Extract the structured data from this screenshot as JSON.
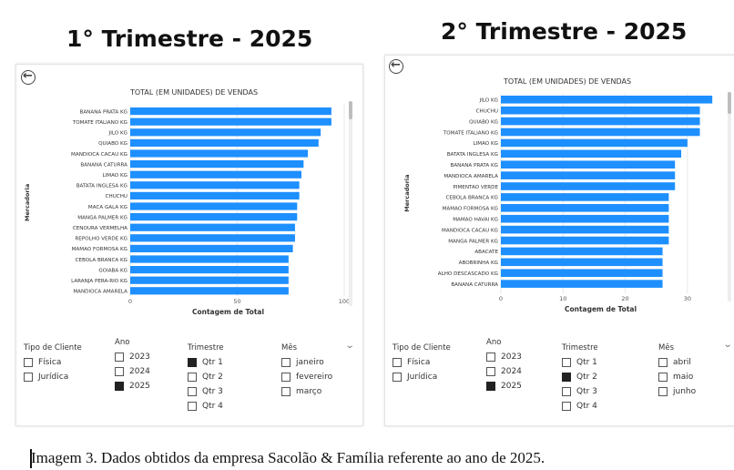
{
  "headings": {
    "left": "1° Trimestre - 2025",
    "right": "2° Trimestre - 2025"
  },
  "caption": "Imagem 3. Dados obtidos da empresa Sacolão & Família referente ao ano de 2025.",
  "colors": {
    "bar": "#1e8fff",
    "grid": "#e8e8e8"
  },
  "icons": {
    "back": "back-arrow-icon",
    "expand": "chevron-down-icon"
  },
  "chart_data": [
    {
      "type": "bar",
      "orientation": "horizontal",
      "title": "TOTAL (EM UNIDADES) DE VENDAS",
      "xlabel": "Contagem de Total",
      "ylabel": "Mercadoria",
      "xlim": [
        0,
        100
      ],
      "xticks": [
        0,
        50,
        100
      ],
      "categories": [
        "BANANA PRATA KG",
        "TOMATE ITALIANO KG",
        "JILO KG",
        "QUIABO KG",
        "MANDIOCA CACAU KG",
        "BANANA CATURRA",
        "LIMAO KG",
        "BATATA INGLESA KG",
        "CHUCHU",
        "MACA GALA KG",
        "MANGA PALMER KG",
        "CENOURA VERMELHA",
        "REPOLHO VERDE KG",
        "MAMAO FORMOSA KG",
        "CEBOLA BRANCA KG",
        "GOIABA KG",
        "LARANJA PERA-RIO KG",
        "MANDIOCA AMARELA"
      ],
      "values": [
        94,
        94,
        89,
        88,
        83,
        81,
        80,
        79,
        79,
        78,
        78,
        77,
        77,
        76,
        74,
        74,
        74,
        74
      ]
    },
    {
      "type": "bar",
      "orientation": "horizontal",
      "title": "TOTAL (EM UNIDADES) DE VENDAS",
      "xlabel": "Contagem de Total",
      "ylabel": "Mercadoria",
      "xlim": [
        0,
        35
      ],
      "xticks": [
        0,
        10,
        20,
        30
      ],
      "categories": [
        "JILO KG",
        "CHUCHU",
        "QUIABO KG",
        "TOMATE ITALIANO KG",
        "LIMAO KG",
        "BATATA INGLESA KG",
        "BANANA PRATA KG",
        "MANDIOCA AMARELA",
        "PIMENTAO VERDE",
        "CEBOLA BRANCA KG",
        "MAMAO FORMOSA KG",
        "MAMAO HAVAI KG",
        "MANDIOCA CACAU KG",
        "MANGA PALMER KG",
        "ABACATE",
        "ABOBRINHA KG",
        "ALHO DESCASCADO KG",
        "BANANA CATURRA"
      ],
      "values": [
        34,
        32,
        32,
        32,
        30,
        29,
        28,
        28,
        28,
        27,
        27,
        27,
        27,
        27,
        26,
        26,
        26,
        26
      ]
    }
  ],
  "filters": [
    {
      "cliente": {
        "title": "Tipo de Cliente",
        "options": [
          {
            "label": "Física",
            "checked": false
          },
          {
            "label": "Jurídica",
            "checked": false
          }
        ]
      },
      "ano": {
        "title": "Ano",
        "options": [
          {
            "label": "2023",
            "checked": false
          },
          {
            "label": "2024",
            "checked": false
          },
          {
            "label": "2025",
            "checked": true
          }
        ]
      },
      "trimestre": {
        "title": "Trimestre",
        "options": [
          {
            "label": "Qtr 1",
            "checked": true
          },
          {
            "label": "Qtr 2",
            "checked": false
          },
          {
            "label": "Qtr 3",
            "checked": false
          },
          {
            "label": "Qtr 4",
            "checked": false
          }
        ]
      },
      "mes": {
        "title": "Mês",
        "options": [
          {
            "label": "janeiro",
            "checked": false
          },
          {
            "label": "fevereiro",
            "checked": false
          },
          {
            "label": "março",
            "checked": false
          }
        ]
      }
    },
    {
      "cliente": {
        "title": "Tipo de Cliente",
        "options": [
          {
            "label": "Física",
            "checked": false
          },
          {
            "label": "Jurídica",
            "checked": false
          }
        ]
      },
      "ano": {
        "title": "Ano",
        "options": [
          {
            "label": "2023",
            "checked": false
          },
          {
            "label": "2024",
            "checked": false
          },
          {
            "label": "2025",
            "checked": true
          }
        ]
      },
      "trimestre": {
        "title": "Trimestre",
        "options": [
          {
            "label": "Qtr 1",
            "checked": false
          },
          {
            "label": "Qtr 2",
            "checked": true
          },
          {
            "label": "Qtr 3",
            "checked": false
          },
          {
            "label": "Qtr 4",
            "checked": false
          }
        ]
      },
      "mes": {
        "title": "Mês",
        "options": [
          {
            "label": "abril",
            "checked": false
          },
          {
            "label": "maio",
            "checked": false
          },
          {
            "label": "junho",
            "checked": false
          }
        ]
      }
    }
  ]
}
